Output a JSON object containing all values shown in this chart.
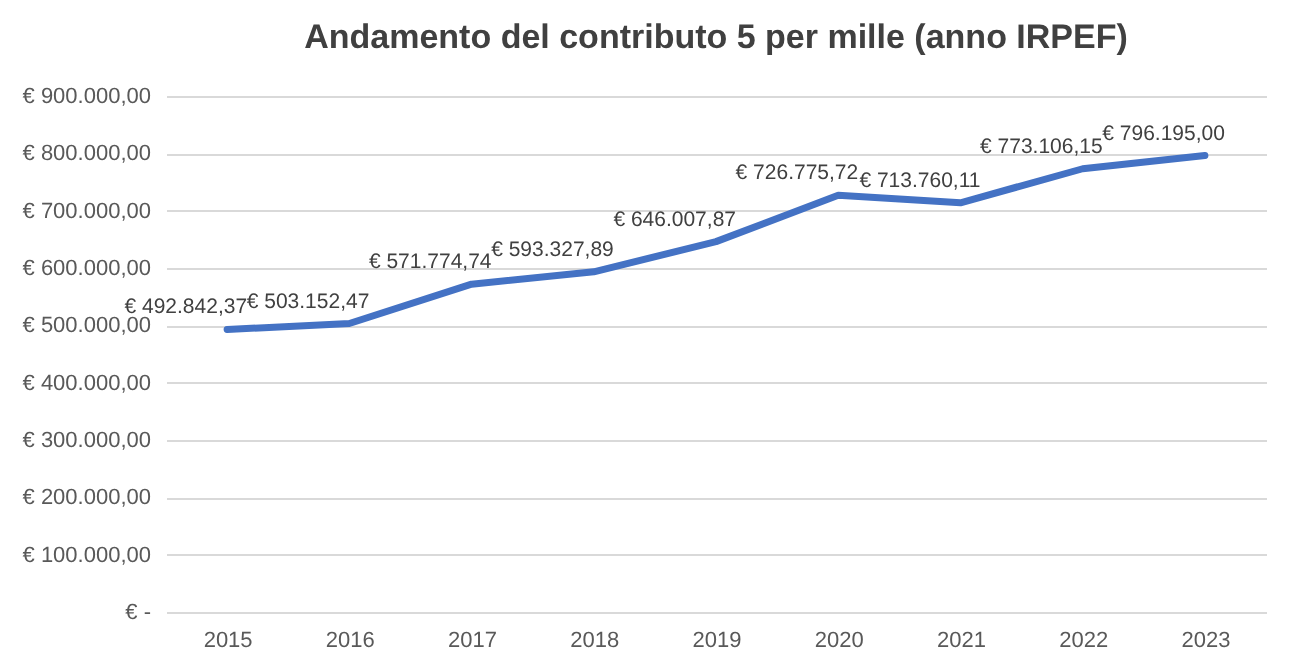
{
  "chart_data": {
    "type": "line",
    "title": "Andamento del contributo 5 per mille (anno IRPEF)",
    "categories": [
      "2015",
      "2016",
      "2017",
      "2018",
      "2019",
      "2020",
      "2021",
      "2022",
      "2023"
    ],
    "series": [
      {
        "color": "#4472c4",
        "values": [
          492842.37,
          503152.47,
          571774.74,
          593327.89,
          646007.87,
          726775.72,
          713760.11,
          773106.15,
          796195.0
        ],
        "value_labels": [
          "€ 492.842,37",
          "€ 503.152,47",
          "€ 571.774,74",
          "€ 593.327,89",
          "€ 646.007,87",
          "€ 726.775,72",
          "€ 713.760,11",
          "€ 773.106,15",
          "€ 796.195,00"
        ]
      }
    ],
    "ylim": [
      0,
      900000
    ],
    "yticks": [
      {
        "value": 0,
        "label": "€ -"
      },
      {
        "value": 100000,
        "label": "€ 100.000,00"
      },
      {
        "value": 200000,
        "label": "€ 200.000,00"
      },
      {
        "value": 300000,
        "label": "€ 300.000,00"
      },
      {
        "value": 400000,
        "label": "€ 400.000,00"
      },
      {
        "value": 500000,
        "label": "€ 500.000,00"
      },
      {
        "value": 600000,
        "label": "€ 600.000,00"
      },
      {
        "value": 700000,
        "label": "€ 700.000,00"
      },
      {
        "value": 800000,
        "label": "€ 800.000,00"
      },
      {
        "value": 900000,
        "label": "€ 900.000,00"
      }
    ],
    "grid": "y",
    "legend": false,
    "marker": "none",
    "line_style": "solid"
  }
}
